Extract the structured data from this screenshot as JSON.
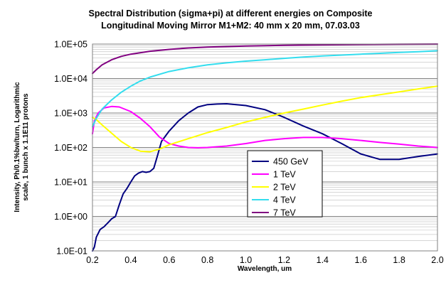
{
  "chart_data": {
    "type": "line",
    "title_lines": [
      "Spectral Distribution (sigma+pi) at different energies on Composite",
      "Longitudinal Moving Mirror M1+M2: 40 mm x 20 mm, 07.03.03"
    ],
    "xlabel": "Wavelength, um",
    "ylabel_lines": [
      "Intensity, Ph/0.1%bw/turn, Logarithmic",
      "scale, 1 bunch x 1.1E11 protons"
    ],
    "x_scale": "linear",
    "y_scale": "log",
    "xlim": [
      0.2,
      2.0
    ],
    "ylim": [
      0.1,
      100000
    ],
    "x_ticks": [
      "0.2",
      "0.4",
      "0.6",
      "0.8",
      "1.0",
      "1.2",
      "1.4",
      "1.6",
      "1.8",
      "2.0"
    ],
    "y_ticks": [
      "1.0E+05",
      "1.0E+04",
      "1.0E+03",
      "1.0E+02",
      "1.0E+01",
      "1.0E+00",
      "1.0E-01"
    ],
    "grid": true,
    "legend_position": "inside-lower-center",
    "series": [
      {
        "name": "450 GeV",
        "color": "#000080",
        "points": [
          [
            0.2,
            0.1
          ],
          [
            0.21,
            0.13
          ],
          [
            0.22,
            0.25
          ],
          [
            0.24,
            0.42
          ],
          [
            0.26,
            0.5
          ],
          [
            0.28,
            0.65
          ],
          [
            0.3,
            0.85
          ],
          [
            0.32,
            1.0
          ],
          [
            0.34,
            2.2
          ],
          [
            0.36,
            4.5
          ],
          [
            0.38,
            6.5
          ],
          [
            0.4,
            10
          ],
          [
            0.42,
            15
          ],
          [
            0.44,
            18
          ],
          [
            0.46,
            20
          ],
          [
            0.48,
            19
          ],
          [
            0.5,
            20
          ],
          [
            0.52,
            25
          ],
          [
            0.54,
            60
          ],
          [
            0.56,
            150
          ],
          [
            0.6,
            300
          ],
          [
            0.65,
            600
          ],
          [
            0.7,
            1000
          ],
          [
            0.75,
            1500
          ],
          [
            0.8,
            1750
          ],
          [
            0.85,
            1820
          ],
          [
            0.9,
            1850
          ],
          [
            1.0,
            1650
          ],
          [
            1.1,
            1250
          ],
          [
            1.2,
            750
          ],
          [
            1.3,
            420
          ],
          [
            1.4,
            250
          ],
          [
            1.45,
            180
          ],
          [
            1.5,
            130
          ],
          [
            1.6,
            65
          ],
          [
            1.7,
            45
          ],
          [
            1.8,
            45
          ],
          [
            1.9,
            55
          ],
          [
            2.0,
            65
          ]
        ]
      },
      {
        "name": "1 TeV",
        "color": "#ff00ff",
        "points": [
          [
            0.2,
            250
          ],
          [
            0.21,
            600
          ],
          [
            0.23,
            1000
          ],
          [
            0.26,
            1400
          ],
          [
            0.3,
            1550
          ],
          [
            0.34,
            1500
          ],
          [
            0.4,
            1100
          ],
          [
            0.45,
            700
          ],
          [
            0.5,
            400
          ],
          [
            0.55,
            200
          ],
          [
            0.6,
            130
          ],
          [
            0.65,
            110
          ],
          [
            0.7,
            100
          ],
          [
            0.75,
            98
          ],
          [
            0.8,
            100
          ],
          [
            0.9,
            110
          ],
          [
            1.0,
            130
          ],
          [
            1.1,
            160
          ],
          [
            1.2,
            180
          ],
          [
            1.3,
            195
          ],
          [
            1.4,
            195
          ],
          [
            1.5,
            180
          ],
          [
            1.6,
            160
          ],
          [
            1.7,
            140
          ],
          [
            1.8,
            125
          ],
          [
            1.9,
            110
          ],
          [
            2.0,
            100
          ]
        ]
      },
      {
        "name": "2 TeV",
        "color": "#ffff00",
        "points": [
          [
            0.2,
            750
          ],
          [
            0.22,
            650
          ],
          [
            0.25,
            450
          ],
          [
            0.3,
            260
          ],
          [
            0.35,
            150
          ],
          [
            0.4,
            100
          ],
          [
            0.45,
            78
          ],
          [
            0.5,
            75
          ],
          [
            0.55,
            90
          ],
          [
            0.6,
            120
          ],
          [
            0.7,
            180
          ],
          [
            0.8,
            270
          ],
          [
            0.9,
            380
          ],
          [
            1.0,
            550
          ],
          [
            1.1,
            750
          ],
          [
            1.2,
            1000
          ],
          [
            1.3,
            1300
          ],
          [
            1.4,
            1700
          ],
          [
            1.5,
            2200
          ],
          [
            1.6,
            2800
          ],
          [
            1.7,
            3400
          ],
          [
            1.8,
            4100
          ],
          [
            1.9,
            5000
          ],
          [
            2.0,
            6000
          ]
        ]
      },
      {
        "name": "4 TeV",
        "color": "#33ddee",
        "points": [
          [
            0.2,
            400
          ],
          [
            0.22,
            700
          ],
          [
            0.25,
            1300
          ],
          [
            0.3,
            2400
          ],
          [
            0.35,
            4000
          ],
          [
            0.4,
            6000
          ],
          [
            0.45,
            8500
          ],
          [
            0.5,
            11000
          ],
          [
            0.6,
            16000
          ],
          [
            0.7,
            20500
          ],
          [
            0.8,
            25000
          ],
          [
            0.9,
            28500
          ],
          [
            1.0,
            32000
          ],
          [
            1.1,
            35000
          ],
          [
            1.2,
            38500
          ],
          [
            1.3,
            42000
          ],
          [
            1.4,
            45000
          ],
          [
            1.5,
            48000
          ],
          [
            1.6,
            51000
          ],
          [
            1.7,
            54000
          ],
          [
            1.8,
            57000
          ],
          [
            1.9,
            60000
          ],
          [
            2.0,
            64000
          ]
        ]
      },
      {
        "name": "7 TeV",
        "color": "#800080",
        "points": [
          [
            0.2,
            14000
          ],
          [
            0.22,
            18000
          ],
          [
            0.25,
            25000
          ],
          [
            0.3,
            35000
          ],
          [
            0.35,
            44000
          ],
          [
            0.4,
            51000
          ],
          [
            0.5,
            62000
          ],
          [
            0.6,
            70000
          ],
          [
            0.7,
            77000
          ],
          [
            0.8,
            82000
          ],
          [
            1.0,
            88000
          ],
          [
            1.2,
            92000
          ],
          [
            1.4,
            95000
          ],
          [
            1.6,
            97000
          ],
          [
            1.8,
            98500
          ],
          [
            2.0,
            100000
          ]
        ]
      }
    ]
  }
}
